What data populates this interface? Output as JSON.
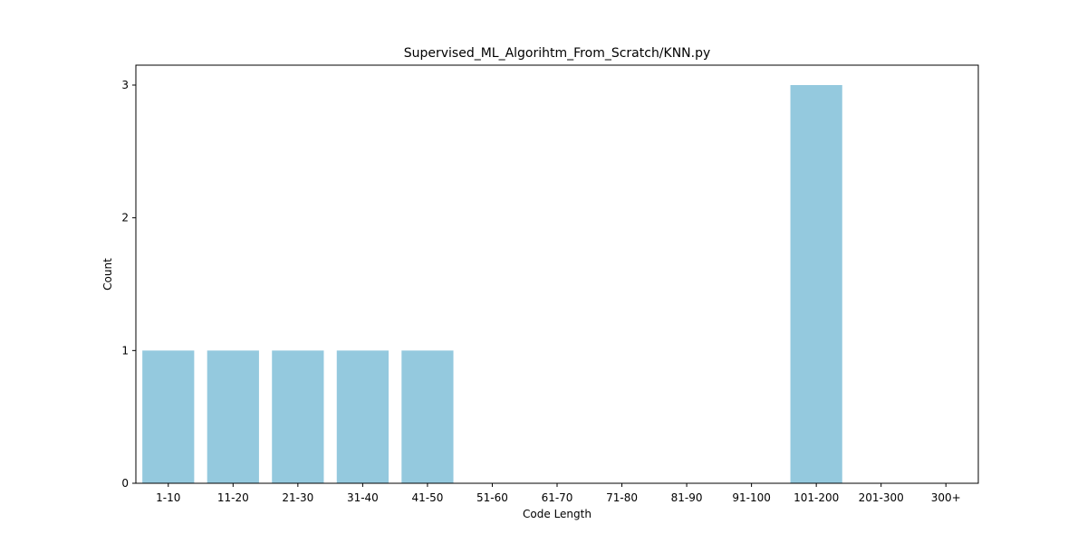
{
  "chart_data": {
    "type": "bar",
    "title": "Supervised_ML_Algorihtm_From_Scratch/KNN.py",
    "xlabel": "Code Length",
    "ylabel": "Count",
    "categories": [
      "1-10",
      "11-20",
      "21-30",
      "31-40",
      "41-50",
      "51-60",
      "61-70",
      "71-80",
      "81-90",
      "91-100",
      "101-200",
      "201-300",
      "300+"
    ],
    "values": [
      1,
      1,
      1,
      1,
      1,
      0,
      0,
      0,
      0,
      0,
      3,
      0,
      0
    ],
    "yticks": [
      "0",
      "1",
      "2",
      "3"
    ],
    "ylim": [
      0,
      3.15
    ],
    "grid": false,
    "bar_color": "#94c9de"
  }
}
